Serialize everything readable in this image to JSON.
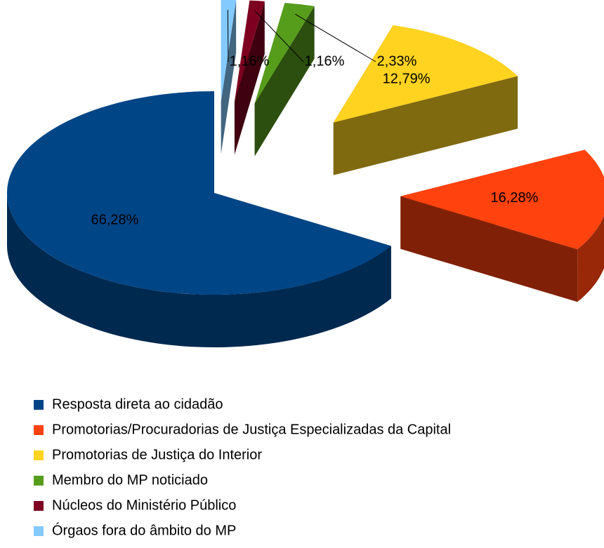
{
  "chart_data": {
    "type": "pie",
    "categories": [
      "Resposta direta ao cidadão",
      "Promotorias/Procuradorias de Justiça Especializadas da Capital",
      "Promotorias de Justiça do Interior",
      "Membro do MP noticiado",
      "Núcleos do Ministério Público",
      "Órgaos fora do âmbito do MP"
    ],
    "values": [
      66.28,
      16.28,
      12.79,
      2.33,
      1.16,
      1.16
    ],
    "value_labels": [
      "66,28%",
      "16,28%",
      "12,79%",
      "2,33%",
      "1,16%",
      "1,16%"
    ],
    "colors": [
      "#004586",
      "#ff420e",
      "#ffd320",
      "#579d1c",
      "#7e0021",
      "#83caff"
    ],
    "legend": "bottom"
  }
}
